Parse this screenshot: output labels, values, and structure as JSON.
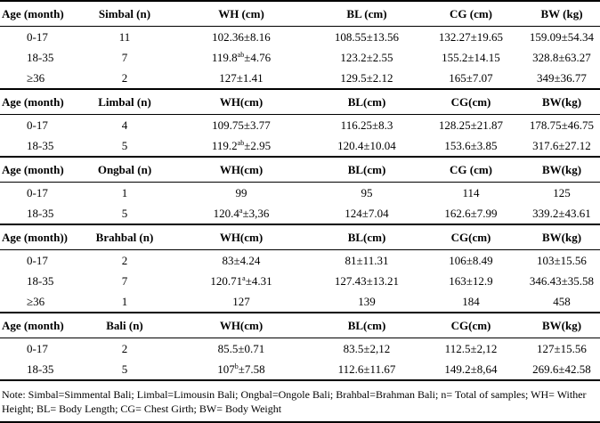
{
  "sections": [
    {
      "header": [
        "Age (month)",
        "Simbal (n)",
        "WH (cm)",
        "BL (cm)",
        "CG (cm)",
        "BW (kg)"
      ],
      "rows": [
        [
          [
            "0-17"
          ],
          [
            "11"
          ],
          [
            "102.36±8.16"
          ],
          [
            "108.55±13.56"
          ],
          [
            "132.27±19.65"
          ],
          [
            "159.09±54.34"
          ]
        ],
        [
          [
            "18-35"
          ],
          [
            "7"
          ],
          [
            "119.8",
            "ab",
            "±4.76"
          ],
          [
            "123.2±2.55"
          ],
          [
            "155.2±14.15"
          ],
          [
            "328.8±63.27"
          ]
        ],
        [
          [
            "≥36"
          ],
          [
            "2"
          ],
          [
            "127±1.41"
          ],
          [
            "129.5±2.12"
          ],
          [
            "165±7.07"
          ],
          [
            "349±36.77"
          ]
        ]
      ]
    },
    {
      "header": [
        "Age (month)",
        "Limbal (n)",
        "WH(cm)",
        "BL(cm)",
        "CG(cm)",
        "BW(kg)"
      ],
      "rows": [
        [
          [
            "0-17"
          ],
          [
            "4"
          ],
          [
            "109.75±3.77"
          ],
          [
            "116.25±8.3"
          ],
          [
            "128.25±21.87"
          ],
          [
            "178.75±46.75"
          ]
        ],
        [
          [
            "18-35"
          ],
          [
            "5"
          ],
          [
            "119.2",
            "ab",
            "±2.95"
          ],
          [
            "120.4±10.04"
          ],
          [
            "153.6±3.85"
          ],
          [
            "317.6±27.12"
          ]
        ]
      ]
    },
    {
      "header": [
        "Age (month)",
        "Ongbal (n)",
        "WH(cm)",
        "BL(cm)",
        "CG (cm)",
        "BW(kg)"
      ],
      "rows": [
        [
          [
            "0-17"
          ],
          [
            "1"
          ],
          [
            "99"
          ],
          [
            "95"
          ],
          [
            "114"
          ],
          [
            "125"
          ]
        ],
        [
          [
            "18-35"
          ],
          [
            "5"
          ],
          [
            "120.4",
            "a",
            "±3,36"
          ],
          [
            "124±7.04"
          ],
          [
            "162.6±7.99"
          ],
          [
            "339.2±43.61"
          ]
        ]
      ]
    },
    {
      "header": [
        "Age (month))",
        "Brahbal (n)",
        "WH(cm)",
        "BL(cm)",
        "CG(cm)",
        "BW(kg)"
      ],
      "rows": [
        [
          [
            "0-17"
          ],
          [
            "2"
          ],
          [
            "83±4.24"
          ],
          [
            "81±11.31"
          ],
          [
            "106±8.49"
          ],
          [
            "103±15.56"
          ]
        ],
        [
          [
            "18-35"
          ],
          [
            "7"
          ],
          [
            "120.71",
            "a",
            "±4.31"
          ],
          [
            "127.43±13.21"
          ],
          [
            "163±12.9"
          ],
          [
            "346.43±35.58"
          ]
        ],
        [
          [
            "≥36"
          ],
          [
            "1"
          ],
          [
            "127"
          ],
          [
            "139"
          ],
          [
            "184"
          ],
          [
            "458"
          ]
        ]
      ]
    },
    {
      "header": [
        "Age (month)",
        "Bali (n)",
        "WH(cm)",
        "BL(cm)",
        "CG(cm)",
        "BW(kg)"
      ],
      "rows": [
        [
          [
            "0-17"
          ],
          [
            "2"
          ],
          [
            "85.5±0.71"
          ],
          [
            "83.5±2,12"
          ],
          [
            "112.5±2,12"
          ],
          [
            "127±15.56"
          ]
        ],
        [
          [
            "18-35"
          ],
          [
            "5"
          ],
          [
            "107",
            "b",
            "±7.58"
          ],
          [
            "112.6±11.67"
          ],
          [
            "149.2±8,64"
          ],
          [
            "269.6±42.58"
          ]
        ]
      ]
    }
  ],
  "note": "Note: Simbal=Simmental Bali; Limbal=Limousin Bali; Ongbal=Ongole Bali; Brahbal=Brahman Bali; n= Total of samples; WH= Wither Height; BL= Body Length; CG= Chest Girth; BW= Body Weight"
}
